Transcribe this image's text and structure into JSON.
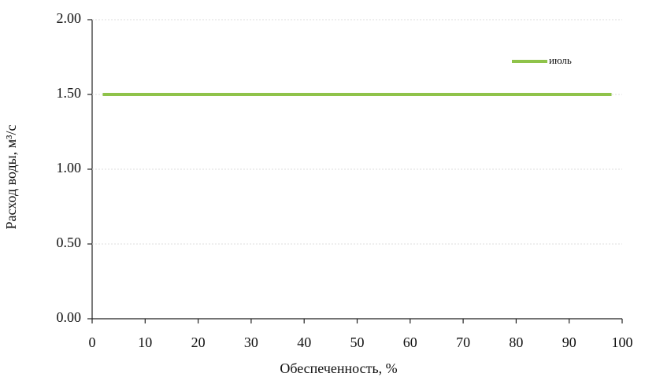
{
  "chart_data": {
    "type": "line",
    "x_label": "Обеспеченность, %",
    "y_label": "Расход воды, м³/с",
    "x": [
      2,
      98
    ],
    "series": [
      {
        "name": "июль",
        "color": "#8fc34a",
        "values": [
          1.5,
          1.5
        ]
      }
    ],
    "xlim": [
      0,
      100
    ],
    "xticks": [
      0,
      10,
      20,
      30,
      40,
      50,
      60,
      70,
      80,
      90,
      100
    ],
    "ylim": [
      0,
      2
    ],
    "yticks": [
      {
        "value": 0,
        "label": "0.00"
      },
      {
        "value": 0.5,
        "label": "0.50"
      },
      {
        "value": 1,
        "label": "1.00"
      },
      {
        "value": 1.5,
        "label": "1.50"
      },
      {
        "value": 2,
        "label": "2.00"
      }
    ],
    "grid": true,
    "legend": "upper right"
  }
}
